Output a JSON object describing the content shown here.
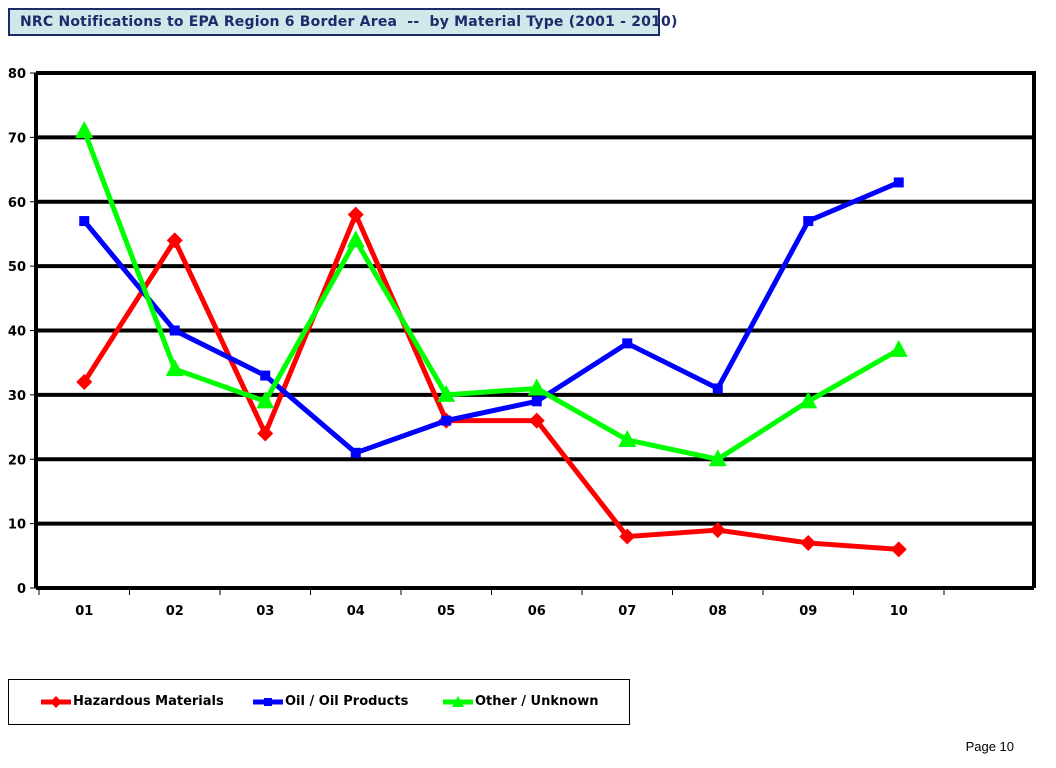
{
  "page": {
    "number_label": "Page 10"
  },
  "chart_data": {
    "type": "line",
    "title": "NRC Notifications to EPA Region 6 Border Area  --  by Material Type (2001 - 2010)",
    "xlabel": "",
    "ylabel": "",
    "categories": [
      "01",
      "02",
      "03",
      "04",
      "05",
      "06",
      "07",
      "08",
      "09",
      "10"
    ],
    "y_ticks": [
      "0",
      "10",
      "20",
      "30",
      "40",
      "50",
      "60",
      "70",
      "80"
    ],
    "ylim": [
      0,
      80
    ],
    "grid": true,
    "legend_position": "bottom",
    "series": [
      {
        "name": "Hazardous Materials",
        "color": "#ff0000",
        "marker": "diamond",
        "values": [
          32,
          54,
          24,
          58,
          26,
          26,
          8,
          9,
          7,
          6
        ]
      },
      {
        "name": "Oil / Oil Products",
        "color": "#0000ff",
        "marker": "square",
        "values": [
          57,
          40,
          33,
          21,
          26,
          29,
          38,
          31,
          57,
          63
        ]
      },
      {
        "name": "Other / Unknown",
        "color": "#00ff00",
        "marker": "triangle",
        "values": [
          71,
          34,
          29,
          54,
          30,
          31,
          23,
          20,
          29,
          37
        ]
      }
    ]
  }
}
